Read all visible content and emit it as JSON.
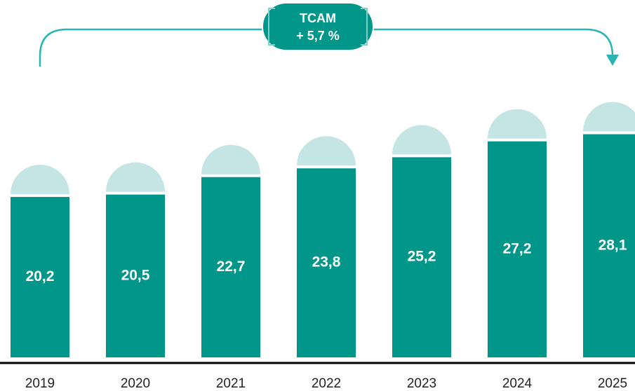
{
  "chart_data": {
    "type": "bar",
    "annotation": [
      "TCAM",
      "+ 5,7 %"
    ],
    "categories": [
      "2019",
      "2020",
      "2021",
      "2022",
      "2023",
      "2024",
      "2025"
    ],
    "values": [
      20.2,
      20.5,
      22.7,
      23.8,
      25.2,
      27.2,
      28.1
    ],
    "value_labels": [
      "20,2",
      "20,5",
      "22,7",
      "23,8",
      "25,2",
      "27,2",
      "28,1"
    ],
    "color": "#00968a",
    "cap_color": "#c4e5e4",
    "ylim": [
      0,
      30
    ]
  }
}
